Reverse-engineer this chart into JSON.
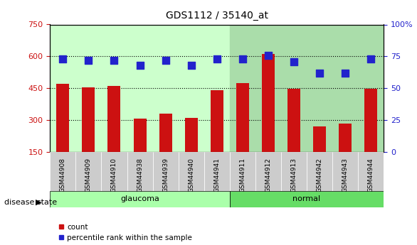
{
  "title": "GDS1112 / 35140_at",
  "samples": [
    "GSM44908",
    "GSM44909",
    "GSM44910",
    "GSM44938",
    "GSM44939",
    "GSM44940",
    "GSM44941",
    "GSM44911",
    "GSM44912",
    "GSM44913",
    "GSM44942",
    "GSM44943",
    "GSM44944"
  ],
  "groups": [
    "glaucoma",
    "glaucoma",
    "glaucoma",
    "glaucoma",
    "glaucoma",
    "glaucoma",
    "glaucoma",
    "normal",
    "normal",
    "normal",
    "normal",
    "normal",
    "normal"
  ],
  "count_values": [
    470,
    455,
    462,
    308,
    330,
    310,
    440,
    475,
    610,
    448,
    270,
    285,
    448
  ],
  "percentile_values": [
    73,
    72,
    72,
    68,
    72,
    68,
    73,
    73,
    76,
    71,
    62,
    62,
    73
  ],
  "ylim_left": [
    150,
    750
  ],
  "ylim_right": [
    0,
    100
  ],
  "yticks_left": [
    150,
    300,
    450,
    600,
    750
  ],
  "yticks_right": [
    0,
    25,
    50,
    75,
    100
  ],
  "bar_color": "#cc1111",
  "dot_color": "#2222cc",
  "glaucoma_bg": "#ccffcc",
  "normal_bg": "#aaddaa",
  "tick_label_area_bg": "#cccccc",
  "glaucoma_label_bg": "#aaffaa",
  "normal_label_bg": "#66dd66",
  "grid_color": "#000000",
  "count_base": 150,
  "bar_width": 0.5,
  "dot_size": 50,
  "figsize": [
    5.86,
    3.45
  ],
  "dpi": 100
}
